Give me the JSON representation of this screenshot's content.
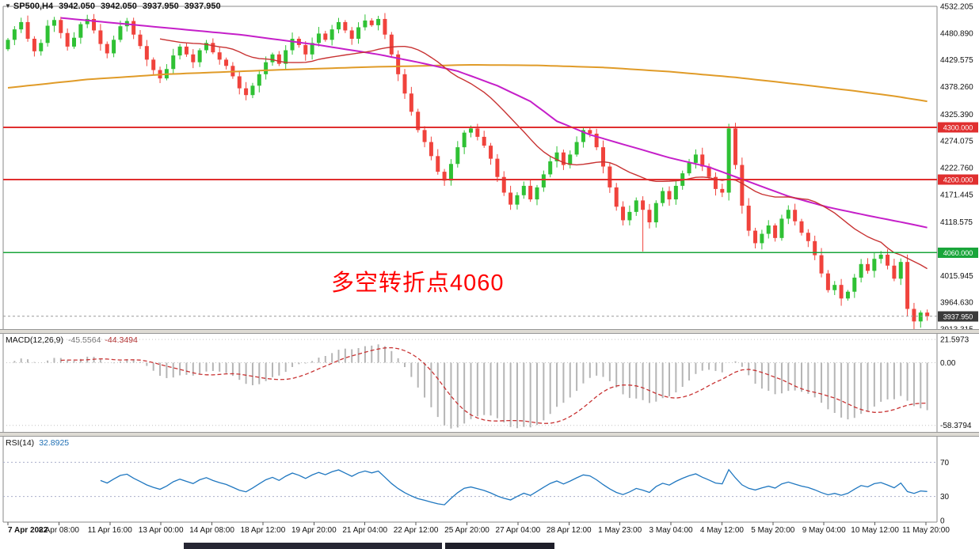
{
  "header": {
    "symbol_period": "SP500,H4",
    "open": "3942.050",
    "high": "3942.050",
    "low": "3937.950",
    "close": "3937.950"
  },
  "annotation": {
    "text": "多空转折点4060",
    "color": "#ff0000"
  },
  "macd_label": {
    "name": "MACD(12,26,9)",
    "main": "-45.5564",
    "signal": "-44.3494"
  },
  "rsi_label": {
    "name": "RSI(14)",
    "value": "32.8925"
  },
  "chart_data": {
    "type": "candlestick",
    "symbol": "SP500",
    "timeframe": "H4",
    "title": "SP500,H4",
    "ohlc_current": {
      "open": 3942.05,
      "high": 3942.05,
      "low": 3937.95,
      "close": 3937.95
    },
    "y_axis_labels": [
      "4532.205",
      "4480.890",
      "4429.575",
      "4378.260",
      "4325.390",
      "4274.075",
      "4222.760",
      "4171.445",
      "4118.575",
      "4015.945",
      "3964.630",
      "3913.315"
    ],
    "x_labels": [
      "7 Apr 2022",
      "8 Apr 08:00",
      "11 Apr 16:00",
      "13 Apr 00:00",
      "14 Apr 08:00",
      "18 Apr 12:00",
      "19 Apr 20:00",
      "21 Apr 04:00",
      "22 Apr 12:00",
      "25 Apr 20:00",
      "27 Apr 04:00",
      "28 Apr 12:00",
      "1 May 23:00",
      "3 May 04:00",
      "4 May 12:00",
      "5 May 20:00",
      "9 May 04:00",
      "10 May 12:00",
      "11 May 20:00"
    ],
    "price_lines": [
      {
        "value": 4300,
        "label": "4300.000",
        "color": "#e02f2f"
      },
      {
        "value": 4200,
        "label": "4200.000",
        "color": "#e02f2f"
      },
      {
        "value": 4060,
        "label": "4060.000",
        "color": "#19a53a"
      }
    ],
    "current_price": {
      "value": 3937.95,
      "label": "3937.950",
      "line_color": "#9a9a9a",
      "badge_color": "#3a3a3a"
    },
    "candles": {
      "up_color": "#2fc134",
      "down_color": "#f0433c",
      "first_open": 4450,
      "closes": [
        4468,
        4488,
        4502,
        4470,
        4446,
        4462,
        4495,
        4506,
        4481,
        4455,
        4472,
        4498,
        4508,
        4486,
        4460,
        4442,
        4468,
        4494,
        4504,
        4478,
        4456,
        4430,
        4410,
        4394,
        4412,
        4438,
        4455,
        4440,
        4425,
        4448,
        4462,
        4444,
        4430,
        4418,
        4398,
        4375,
        4362,
        4380,
        4402,
        4425,
        4440,
        4422,
        4448,
        4470,
        4458,
        4440,
        4462,
        4480,
        4468,
        4488,
        4502,
        4486,
        4470,
        4492,
        4505,
        4496,
        4508,
        4478,
        4440,
        4402,
        4365,
        4330,
        4295,
        4272,
        4245,
        4215,
        4198,
        4230,
        4262,
        4290,
        4298,
        4282,
        4265,
        4240,
        4205,
        4175,
        4152,
        4170,
        4188,
        4162,
        4185,
        4210,
        4235,
        4252,
        4228,
        4248,
        4272,
        4295,
        4288,
        4262,
        4225,
        4185,
        4148,
        4122,
        4138,
        4160,
        4142,
        4118,
        4155,
        4178,
        4162,
        4188,
        4212,
        4232,
        4248,
        4225,
        4205,
        4182,
        4175,
        4298,
        4228,
        4150,
        4102,
        4078,
        4096,
        4112,
        4088,
        4125,
        4142,
        4120,
        4098,
        4082,
        4055,
        4020,
        3988,
        3998,
        3972,
        3985,
        4012,
        4038,
        4025,
        4048,
        4056,
        4035,
        4010,
        4042,
        3952,
        3928,
        3945,
        3937.95
      ],
      "high_overrides": {
        "7": 4512,
        "12": 4516,
        "18": 4510,
        "50": 4510,
        "56": 4514,
        "109": 4307,
        "131": 4060,
        "132": 4063
      },
      "low_overrides": {
        "4": 4436,
        "23": 4385,
        "36": 4352,
        "63": 4262,
        "66": 4188,
        "76": 4142,
        "93": 4112,
        "96": 4062,
        "113": 4068,
        "126": 3958,
        "137": 3912
      }
    },
    "moving_averages": {
      "fast": {
        "period": 24,
        "color": "#c83232"
      },
      "medium": {
        "color": "#c51fc9",
        "points": [
          [
            8,
            4510
          ],
          [
            23,
            4492
          ],
          [
            35,
            4478
          ],
          [
            47,
            4458
          ],
          [
            56,
            4440
          ],
          [
            62,
            4425
          ],
          [
            68,
            4408
          ],
          [
            74,
            4380
          ],
          [
            79,
            4350
          ],
          [
            83,
            4312
          ],
          [
            88,
            4286
          ],
          [
            94,
            4264
          ],
          [
            100,
            4242
          ],
          [
            106,
            4224
          ],
          [
            112,
            4196
          ],
          [
            118,
            4168
          ],
          [
            124,
            4147
          ],
          [
            130,
            4131
          ],
          [
            136,
            4116
          ],
          [
            139,
            4108
          ]
        ]
      },
      "slow": {
        "color": "#e09b28",
        "points": [
          [
            0,
            4376
          ],
          [
            12,
            4392
          ],
          [
            24,
            4402
          ],
          [
            40,
            4410
          ],
          [
            55,
            4416
          ],
          [
            70,
            4420
          ],
          [
            80,
            4419
          ],
          [
            90,
            4415
          ],
          [
            100,
            4407
          ],
          [
            110,
            4396
          ],
          [
            120,
            4382
          ],
          [
            128,
            4370
          ],
          [
            134,
            4360
          ],
          [
            139,
            4350
          ]
        ]
      }
    },
    "macd": {
      "params": "12,26,9",
      "last_main": -45.5564,
      "last_signal": -44.3494,
      "hist_color": "#b5b5b5",
      "signal_color": "#c83232",
      "axis": [
        {
          "label": "21.5973",
          "value": 21.5973
        },
        {
          "label": "0.00",
          "value": 0
        },
        {
          "label": "-58.3794",
          "value": -58.3794
        }
      ]
    },
    "rsi": {
      "period": 14,
      "last": 32.8925,
      "color": "#1f77c0",
      "levels": [
        {
          "label": "70",
          "value": 70,
          "line": true
        },
        {
          "label": "30",
          "value": 30,
          "line": true
        },
        {
          "label": "0",
          "value": 0,
          "line": false
        }
      ]
    }
  }
}
